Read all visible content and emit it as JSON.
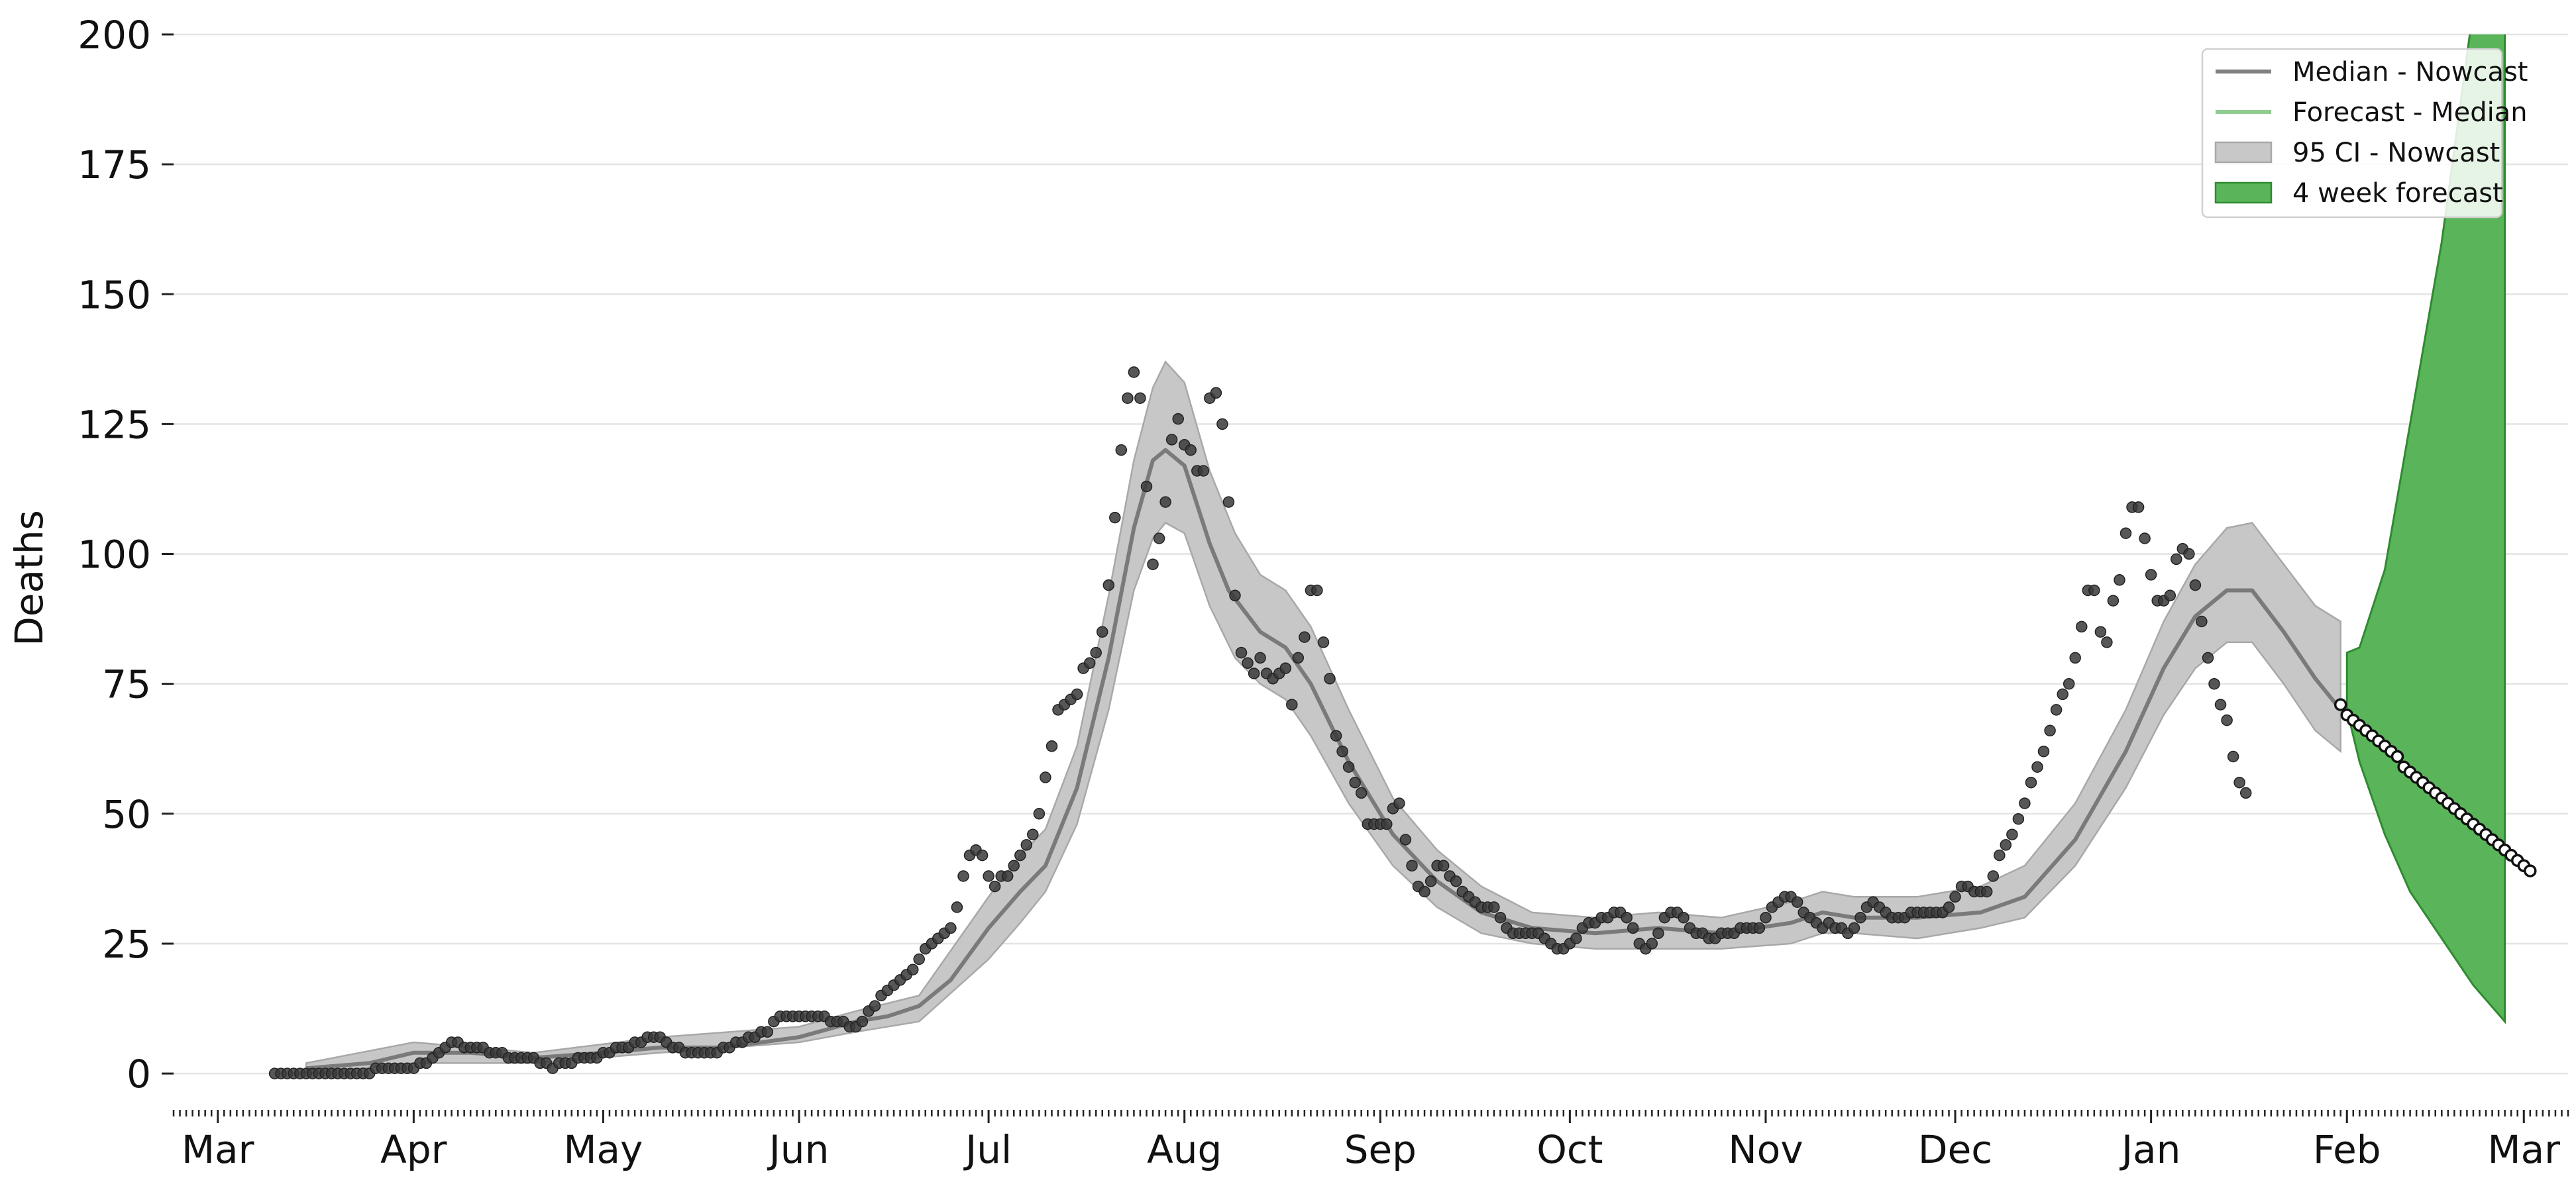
{
  "chart_data": {
    "type": "line",
    "ylabel": "Deaths",
    "ylim": [
      -7,
      200
    ],
    "yticks": [
      0,
      25,
      50,
      75,
      100,
      125,
      150,
      175,
      200
    ],
    "grid": "horizontal",
    "legend_position": "top-right",
    "x_axis": {
      "range": [
        "2020-02-23",
        "2021-03-08"
      ],
      "month_ticks": [
        {
          "label": "Mar",
          "date": "2020-03-01"
        },
        {
          "label": "Apr",
          "date": "2020-04-01"
        },
        {
          "label": "May",
          "date": "2020-05-01"
        },
        {
          "label": "Jun",
          "date": "2020-06-01"
        },
        {
          "label": "Jul",
          "date": "2020-07-01"
        },
        {
          "label": "Aug",
          "date": "2020-08-01"
        },
        {
          "label": "Sep",
          "date": "2020-09-01"
        },
        {
          "label": "Oct",
          "date": "2020-10-01"
        },
        {
          "label": "Nov",
          "date": "2020-11-01"
        },
        {
          "label": "Dec",
          "date": "2020-12-01"
        },
        {
          "label": "Jan",
          "date": "2021-01-01"
        },
        {
          "label": "Feb",
          "date": "2021-02-01"
        },
        {
          "label": "Mar",
          "date": "2021-03-01"
        }
      ]
    },
    "legend": [
      {
        "label": "Median - Nowcast",
        "kind": "line",
        "color": "#808080"
      },
      {
        "label": "Forecast - Median",
        "kind": "line",
        "color": "#90cc90"
      },
      {
        "label": "95 CI - Nowcast",
        "kind": "patch",
        "color": "#c8c8c8"
      },
      {
        "label": "4 week forecast",
        "kind": "patch",
        "color": "#5ab45a"
      }
    ],
    "colors": {
      "median_line": "#7a7a7a",
      "ci_fill": "#c4c4c4",
      "forecast_fill": "#5ab45a",
      "forecast_edge": "#2e8b2e",
      "observed_points": "#3a3a3a",
      "forecast_points_fill": "#ffffff",
      "forecast_points_edge": "#111111",
      "grid": "#e4e4e4"
    },
    "series": [
      {
        "name": "Median - Nowcast",
        "kind": "line",
        "points": [
          [
            "2020-03-15",
            1
          ],
          [
            "2020-03-25",
            2
          ],
          [
            "2020-04-01",
            4
          ],
          [
            "2020-04-10",
            4
          ],
          [
            "2020-04-20",
            3
          ],
          [
            "2020-05-01",
            4
          ],
          [
            "2020-05-10",
            5
          ],
          [
            "2020-05-20",
            5
          ],
          [
            "2020-06-01",
            7
          ],
          [
            "2020-06-10",
            10
          ],
          [
            "2020-06-15",
            11
          ],
          [
            "2020-06-20",
            13
          ],
          [
            "2020-06-25",
            18
          ],
          [
            "2020-07-01",
            28
          ],
          [
            "2020-07-06",
            35
          ],
          [
            "2020-07-10",
            40
          ],
          [
            "2020-07-15",
            55
          ],
          [
            "2020-07-20",
            80
          ],
          [
            "2020-07-24",
            105
          ],
          [
            "2020-07-27",
            118
          ],
          [
            "2020-07-29",
            120
          ],
          [
            "2020-08-01",
            117
          ],
          [
            "2020-08-05",
            102
          ],
          [
            "2020-08-08",
            93
          ],
          [
            "2020-08-13",
            85
          ],
          [
            "2020-08-17",
            82
          ],
          [
            "2020-08-21",
            75
          ],
          [
            "2020-08-27",
            60
          ],
          [
            "2020-09-03",
            46
          ],
          [
            "2020-09-10",
            37
          ],
          [
            "2020-09-17",
            31
          ],
          [
            "2020-09-25",
            28
          ],
          [
            "2020-10-05",
            27
          ],
          [
            "2020-10-15",
            28
          ],
          [
            "2020-10-25",
            27
          ],
          [
            "2020-11-05",
            29
          ],
          [
            "2020-11-10",
            31
          ],
          [
            "2020-11-15",
            30
          ],
          [
            "2020-11-25",
            30
          ],
          [
            "2020-12-05",
            31
          ],
          [
            "2020-12-12",
            34
          ],
          [
            "2020-12-20",
            45
          ],
          [
            "2020-12-28",
            62
          ],
          [
            "2021-01-03",
            78
          ],
          [
            "2021-01-08",
            88
          ],
          [
            "2021-01-13",
            93
          ],
          [
            "2021-01-17",
            93
          ],
          [
            "2021-01-22",
            85
          ],
          [
            "2021-01-27",
            76
          ],
          [
            "2021-01-31",
            70
          ]
        ]
      },
      {
        "name": "95 CI - Nowcast",
        "kind": "band",
        "points": [
          [
            "2020-03-15",
            0,
            2
          ],
          [
            "2020-04-01",
            2,
            6
          ],
          [
            "2020-04-20",
            2,
            4
          ],
          [
            "2020-05-10",
            4,
            7
          ],
          [
            "2020-06-01",
            6,
            9
          ],
          [
            "2020-06-10",
            8,
            12
          ],
          [
            "2020-06-20",
            10,
            15
          ],
          [
            "2020-07-01",
            22,
            34
          ],
          [
            "2020-07-06",
            29,
            42
          ],
          [
            "2020-07-10",
            35,
            47
          ],
          [
            "2020-07-15",
            48,
            63
          ],
          [
            "2020-07-20",
            70,
            92
          ],
          [
            "2020-07-24",
            93,
            118
          ],
          [
            "2020-07-27",
            103,
            132
          ],
          [
            "2020-07-29",
            106,
            137
          ],
          [
            "2020-08-01",
            104,
            133
          ],
          [
            "2020-08-05",
            90,
            116
          ],
          [
            "2020-08-09",
            80,
            104
          ],
          [
            "2020-08-13",
            75,
            96
          ],
          [
            "2020-08-17",
            72,
            93
          ],
          [
            "2020-08-21",
            65,
            86
          ],
          [
            "2020-08-27",
            52,
            70
          ],
          [
            "2020-09-03",
            40,
            53
          ],
          [
            "2020-09-10",
            32,
            43
          ],
          [
            "2020-09-17",
            27,
            36
          ],
          [
            "2020-09-25",
            25,
            31
          ],
          [
            "2020-10-05",
            24,
            30
          ],
          [
            "2020-10-15",
            24,
            31
          ],
          [
            "2020-10-25",
            24,
            30
          ],
          [
            "2020-11-05",
            25,
            33
          ],
          [
            "2020-11-10",
            27,
            35
          ],
          [
            "2020-11-15",
            27,
            34
          ],
          [
            "2020-11-25",
            26,
            34
          ],
          [
            "2020-12-05",
            28,
            36
          ],
          [
            "2020-12-12",
            30,
            40
          ],
          [
            "2020-12-20",
            40,
            52
          ],
          [
            "2020-12-28",
            55,
            70
          ],
          [
            "2021-01-03",
            69,
            87
          ],
          [
            "2021-01-08",
            78,
            98
          ],
          [
            "2021-01-13",
            83,
            105
          ],
          [
            "2021-01-17",
            83,
            106
          ],
          [
            "2021-01-22",
            75,
            98
          ],
          [
            "2021-01-27",
            66,
            90
          ],
          [
            "2021-01-31",
            62,
            87
          ]
        ]
      },
      {
        "name": "4 week forecast",
        "kind": "band",
        "points": [
          [
            "2021-02-01",
            70,
            81
          ],
          [
            "2021-02-03",
            60,
            82
          ],
          [
            "2021-02-07",
            46,
            97
          ],
          [
            "2021-02-11",
            35,
            125
          ],
          [
            "2021-02-16",
            26,
            160
          ],
          [
            "2021-02-21",
            17,
            205
          ],
          [
            "2021-02-26",
            10,
            215
          ]
        ]
      },
      {
        "name": "Forecast - Median",
        "kind": "markers",
        "start_date": "2021-01-31",
        "step_days": 1,
        "values": [
          71,
          69,
          68,
          67,
          66,
          65,
          64,
          63,
          62,
          61,
          59,
          58,
          57,
          56,
          55,
          54,
          53,
          52,
          51,
          50,
          49,
          48,
          47,
          46,
          45,
          44,
          43,
          42,
          41,
          40,
          39
        ]
      },
      {
        "name": "Observed deaths",
        "kind": "scatter",
        "start_date": "2020-03-10",
        "step_days": 1,
        "values": [
          0,
          0,
          0,
          0,
          0,
          0,
          0,
          0,
          0,
          0,
          0,
          0,
          0,
          0,
          0,
          0,
          1,
          1,
          1,
          1,
          1,
          1,
          1,
          2,
          2,
          3,
          4,
          5,
          6,
          6,
          5,
          5,
          5,
          5,
          4,
          4,
          4,
          3,
          3,
          3,
          3,
          3,
          2,
          2,
          1,
          2,
          2,
          2,
          3,
          3,
          3,
          3,
          4,
          4,
          5,
          5,
          5,
          6,
          6,
          7,
          7,
          7,
          6,
          5,
          5,
          4,
          4,
          4,
          4,
          4,
          4,
          5,
          5,
          6,
          6,
          7,
          7,
          8,
          8,
          10,
          11,
          11,
          11,
          11,
          11,
          11,
          11,
          11,
          10,
          10,
          10,
          9,
          9,
          10,
          12,
          13,
          15,
          16,
          17,
          18,
          19,
          20,
          22,
          24,
          25,
          26,
          27,
          28,
          32,
          38,
          42,
          43,
          42,
          38,
          36,
          38,
          38,
          40,
          42,
          44,
          46,
          50,
          57,
          63,
          70,
          71,
          72,
          73,
          78,
          79,
          81,
          85,
          94,
          107,
          120,
          130,
          135,
          130,
          113,
          98,
          103,
          110,
          122,
          126,
          121,
          120,
          116,
          116,
          130,
          131,
          125,
          110,
          92,
          81,
          79,
          77,
          80,
          77,
          76,
          77,
          78,
          71,
          80,
          84,
          93,
          93,
          83,
          76,
          65,
          62,
          59,
          56,
          54,
          48,
          48,
          48,
          48,
          51,
          52,
          45,
          40,
          36,
          35,
          37,
          40,
          40,
          38,
          37,
          35,
          34,
          33,
          32,
          32,
          32,
          30,
          28,
          27,
          27,
          27,
          27,
          27,
          26,
          25,
          24,
          24,
          25,
          26,
          28,
          29,
          29,
          30,
          30,
          31,
          31,
          30,
          28,
          25,
          24,
          25,
          27,
          30,
          31,
          31,
          30,
          28,
          27,
          27,
          26,
          26,
          27,
          27,
          27,
          28,
          28,
          28,
          28,
          30,
          32,
          33,
          34,
          34,
          33,
          31,
          30,
          29,
          28,
          29,
          28,
          28,
          27,
          28,
          30,
          32,
          33,
          32,
          31,
          30,
          30,
          30,
          31,
          31,
          31,
          31,
          31,
          31,
          32,
          34,
          36,
          36,
          35,
          35,
          35,
          38,
          42,
          44,
          46,
          49,
          52,
          56,
          59,
          62,
          66,
          70,
          73,
          75,
          80,
          86,
          93,
          93,
          85,
          83,
          91,
          95,
          104,
          109,
          109,
          103,
          96,
          91,
          91,
          92,
          99,
          101,
          100,
          94,
          87,
          80,
          75,
          71,
          68,
          61,
          56,
          54
        ]
      }
    ]
  }
}
